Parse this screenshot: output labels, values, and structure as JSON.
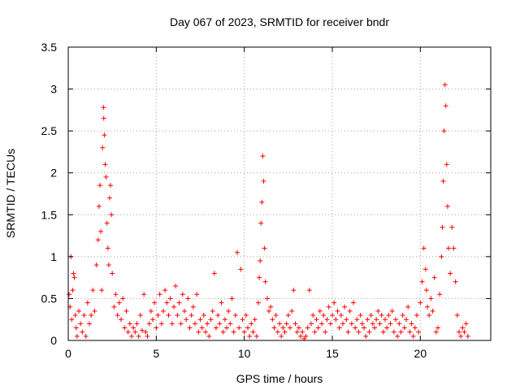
{
  "chart_data": {
    "type": "scatter",
    "title": "Day 067 of 2023, SRMTID for receiver bndr",
    "xlabel": "GPS time / hours",
    "ylabel": "SRMTID / TECUs",
    "xlim": [
      0,
      24
    ],
    "ylim": [
      0,
      3.5
    ],
    "xticks": [
      0,
      5,
      10,
      15,
      20
    ],
    "xtick_labels": [
      "0",
      "5",
      "10",
      "15",
      "20"
    ],
    "yticks": [
      0,
      0.5,
      1,
      1.5,
      2,
      2.5,
      3,
      3.5
    ],
    "ytick_labels": [
      "0",
      "0.5",
      "1",
      "1.5",
      "2",
      "2.5",
      "3",
      "3.5"
    ],
    "grid": true,
    "marker": "plus",
    "color": "#ff0000",
    "series": [
      {
        "name": "SRMTID",
        "points": [
          [
            0.05,
            0.55
          ],
          [
            0.1,
            0.4
          ],
          [
            0.15,
            1.0
          ],
          [
            0.2,
            0.25
          ],
          [
            0.25,
            0.6
          ],
          [
            0.3,
            0.8
          ],
          [
            0.35,
            0.75
          ],
          [
            0.4,
            0.3
          ],
          [
            0.45,
            0.15
          ],
          [
            0.5,
            0.05
          ],
          [
            0.6,
            0.35
          ],
          [
            0.7,
            0.2
          ],
          [
            0.8,
            0.1
          ],
          [
            0.9,
            0.3
          ],
          [
            1.0,
            0.05
          ],
          [
            1.1,
            0.45
          ],
          [
            1.2,
            0.2
          ],
          [
            1.3,
            0.3
          ],
          [
            1.4,
            0.6
          ],
          [
            1.5,
            0.35
          ],
          [
            1.6,
            0.9
          ],
          [
            1.7,
            1.2
          ],
          [
            1.75,
            1.6
          ],
          [
            1.8,
            1.85
          ],
          [
            1.85,
            1.3
          ],
          [
            1.9,
            0.6
          ],
          [
            1.95,
            2.3
          ],
          [
            2.0,
            2.78
          ],
          [
            2.02,
            2.65
          ],
          [
            2.05,
            2.45
          ],
          [
            2.1,
            2.1
          ],
          [
            2.15,
            1.95
          ],
          [
            2.2,
            1.4
          ],
          [
            2.25,
            1.1
          ],
          [
            2.3,
            0.9
          ],
          [
            2.35,
            1.7
          ],
          [
            2.4,
            1.85
          ],
          [
            2.45,
            1.5
          ],
          [
            2.5,
            0.8
          ],
          [
            2.6,
            0.4
          ],
          [
            2.7,
            0.55
          ],
          [
            2.8,
            0.3
          ],
          [
            2.9,
            0.45
          ],
          [
            3.0,
            0.25
          ],
          [
            3.1,
            0.5
          ],
          [
            3.2,
            0.15
          ],
          [
            3.3,
            0.35
          ],
          [
            3.4,
            0.1
          ],
          [
            3.5,
            0.2
          ],
          [
            3.6,
            0.05
          ],
          [
            3.7,
            0.15
          ],
          [
            3.8,
            0.1
          ],
          [
            3.9,
            0.2
          ],
          [
            4.0,
            0.05
          ],
          [
            4.1,
            0.3
          ],
          [
            4.2,
            0.12
          ],
          [
            4.3,
            0.55
          ],
          [
            4.4,
            0.1
          ],
          [
            4.5,
            0.05
          ],
          [
            4.6,
            0.2
          ],
          [
            4.7,
            0.35
          ],
          [
            4.8,
            0.25
          ],
          [
            4.9,
            0.45
          ],
          [
            5.0,
            0.15
          ],
          [
            5.1,
            0.3
          ],
          [
            5.2,
            0.55
          ],
          [
            5.3,
            0.2
          ],
          [
            5.4,
            0.35
          ],
          [
            5.5,
            0.6
          ],
          [
            5.6,
            0.45
          ],
          [
            5.7,
            0.3
          ],
          [
            5.8,
            0.5
          ],
          [
            5.9,
            0.2
          ],
          [
            6.0,
            0.4
          ],
          [
            6.1,
            0.65
          ],
          [
            6.2,
            0.3
          ],
          [
            6.3,
            0.45
          ],
          [
            6.4,
            0.2
          ],
          [
            6.5,
            0.55
          ],
          [
            6.6,
            0.35
          ],
          [
            6.7,
            0.25
          ],
          [
            6.8,
            0.5
          ],
          [
            6.9,
            0.15
          ],
          [
            7.0,
            0.3
          ],
          [
            7.1,
            0.4
          ],
          [
            7.2,
            0.2
          ],
          [
            7.3,
            0.55
          ],
          [
            7.4,
            0.1
          ],
          [
            7.5,
            0.25
          ],
          [
            7.6,
            0.15
          ],
          [
            7.7,
            0.3
          ],
          [
            7.8,
            0.1
          ],
          [
            7.9,
            0.2
          ],
          [
            8.0,
            0.05
          ],
          [
            8.1,
            0.25
          ],
          [
            8.2,
            0.35
          ],
          [
            8.3,
            0.8
          ],
          [
            8.4,
            0.15
          ],
          [
            8.5,
            0.3
          ],
          [
            8.6,
            0.2
          ],
          [
            8.7,
            0.45
          ],
          [
            8.8,
            0.1
          ],
          [
            8.9,
            0.25
          ],
          [
            9.0,
            0.15
          ],
          [
            9.1,
            0.35
          ],
          [
            9.2,
            0.2
          ],
          [
            9.3,
            0.5
          ],
          [
            9.4,
            0.1
          ],
          [
            9.5,
            0.3
          ],
          [
            9.6,
            1.05
          ],
          [
            9.7,
            0.15
          ],
          [
            9.8,
            0.85
          ],
          [
            9.9,
            0.25
          ],
          [
            10.0,
            0.1
          ],
          [
            10.1,
            0.3
          ],
          [
            10.2,
            0.15
          ],
          [
            10.3,
            0.05
          ],
          [
            10.4,
            0.2
          ],
          [
            10.5,
            0.1
          ],
          [
            10.6,
            0.25
          ],
          [
            10.7,
            0.05
          ],
          [
            10.8,
            0.45
          ],
          [
            10.85,
            0.75
          ],
          [
            10.9,
            0.95
          ],
          [
            10.95,
            1.4
          ],
          [
            11.0,
            1.65
          ],
          [
            11.05,
            2.2
          ],
          [
            11.1,
            1.9
          ],
          [
            11.15,
            1.1
          ],
          [
            11.2,
            0.7
          ],
          [
            11.3,
            0.5
          ],
          [
            11.4,
            0.35
          ],
          [
            11.5,
            0.4
          ],
          [
            11.6,
            0.25
          ],
          [
            11.7,
            0.15
          ],
          [
            11.8,
            0.3
          ],
          [
            11.9,
            0.1
          ],
          [
            12.0,
            0.2
          ],
          [
            12.1,
            0.05
          ],
          [
            12.2,
            0.15
          ],
          [
            12.3,
            0.1
          ],
          [
            12.4,
            0.2
          ],
          [
            12.5,
            0.3
          ],
          [
            12.6,
            0.15
          ],
          [
            12.7,
            0.35
          ],
          [
            12.8,
            0.6
          ],
          [
            12.9,
            0.2
          ],
          [
            13.0,
            0.1
          ],
          [
            13.1,
            0.15
          ],
          [
            13.2,
            0.05
          ],
          [
            13.3,
            0.1
          ],
          [
            13.4,
            0.02
          ],
          [
            13.5,
            0.05
          ],
          [
            13.6,
            0.15
          ],
          [
            13.7,
            0.6
          ],
          [
            13.8,
            0.2
          ],
          [
            13.9,
            0.3
          ],
          [
            14.0,
            0.1
          ],
          [
            14.1,
            0.25
          ],
          [
            14.2,
            0.15
          ],
          [
            14.3,
            0.35
          ],
          [
            14.4,
            0.2
          ],
          [
            14.5,
            0.3
          ],
          [
            14.6,
            0.1
          ],
          [
            14.7,
            0.25
          ],
          [
            14.8,
            0.4
          ],
          [
            14.9,
            0.2
          ],
          [
            15.0,
            0.3
          ],
          [
            15.1,
            0.45
          ],
          [
            15.2,
            0.25
          ],
          [
            15.3,
            0.35
          ],
          [
            15.4,
            0.15
          ],
          [
            15.5,
            0.3
          ],
          [
            15.6,
            0.2
          ],
          [
            15.7,
            0.4
          ],
          [
            15.8,
            0.25
          ],
          [
            15.9,
            0.1
          ],
          [
            16.0,
            0.35
          ],
          [
            16.1,
            0.2
          ],
          [
            16.2,
            0.45
          ],
          [
            16.3,
            0.15
          ],
          [
            16.4,
            0.25
          ],
          [
            16.5,
            0.1
          ],
          [
            16.6,
            0.3
          ],
          [
            16.7,
            0.2
          ],
          [
            16.8,
            0.15
          ],
          [
            16.9,
            0.05
          ],
          [
            17.0,
            0.25
          ],
          [
            17.1,
            0.1
          ],
          [
            17.2,
            0.3
          ],
          [
            17.3,
            0.2
          ],
          [
            17.4,
            0.15
          ],
          [
            17.5,
            0.25
          ],
          [
            17.6,
            0.35
          ],
          [
            17.7,
            0.2
          ],
          [
            17.8,
            0.3
          ],
          [
            17.9,
            0.1
          ],
          [
            18.0,
            0.25
          ],
          [
            18.1,
            0.15
          ],
          [
            18.2,
            0.3
          ],
          [
            18.3,
            0.2
          ],
          [
            18.4,
            0.35
          ],
          [
            18.5,
            0.1
          ],
          [
            18.6,
            0.25
          ],
          [
            18.7,
            0.05
          ],
          [
            18.8,
            0.2
          ],
          [
            18.9,
            0.1
          ],
          [
            19.0,
            0.3
          ],
          [
            19.1,
            0.15
          ],
          [
            19.2,
            0.25
          ],
          [
            19.3,
            0.4
          ],
          [
            19.4,
            0.1
          ],
          [
            19.5,
            0.2
          ],
          [
            19.6,
            0.05
          ],
          [
            19.7,
            0.15
          ],
          [
            19.8,
            0.3
          ],
          [
            19.9,
            0.1
          ],
          [
            20.0,
            0.45
          ],
          [
            20.1,
            0.7
          ],
          [
            20.2,
            1.1
          ],
          [
            20.3,
            0.85
          ],
          [
            20.35,
            0.6
          ],
          [
            20.4,
            0.4
          ],
          [
            20.5,
            0.3
          ],
          [
            20.6,
            0.5
          ],
          [
            20.7,
            0.35
          ],
          [
            20.8,
            0.75
          ],
          [
            20.9,
            0.1
          ],
          [
            21.0,
            0.15
          ],
          [
            21.1,
            0.55
          ],
          [
            21.2,
            1.0
          ],
          [
            21.25,
            1.35
          ],
          [
            21.3,
            1.9
          ],
          [
            21.35,
            2.5
          ],
          [
            21.4,
            3.05
          ],
          [
            21.45,
            2.8
          ],
          [
            21.5,
            2.1
          ],
          [
            21.55,
            1.6
          ],
          [
            21.6,
            1.1
          ],
          [
            21.7,
            0.8
          ],
          [
            21.8,
            1.35
          ],
          [
            21.9,
            1.1
          ],
          [
            22.0,
            0.7
          ],
          [
            22.1,
            0.3
          ],
          [
            22.2,
            0.1
          ],
          [
            22.3,
            0.05
          ],
          [
            22.4,
            0.15
          ],
          [
            22.5,
            0.1
          ],
          [
            22.6,
            0.2
          ],
          [
            22.7,
            0.05
          ]
        ]
      }
    ]
  }
}
